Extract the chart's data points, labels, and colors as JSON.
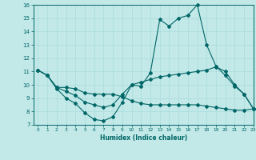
{
  "title": "",
  "xlabel": "Humidex (Indice chaleur)",
  "ylabel": "",
  "xlim": [
    -0.5,
    23
  ],
  "ylim": [
    7,
    16
  ],
  "yticks": [
    7,
    8,
    9,
    10,
    11,
    12,
    13,
    14,
    15,
    16
  ],
  "xticks": [
    0,
    1,
    2,
    3,
    4,
    5,
    6,
    7,
    8,
    9,
    10,
    11,
    12,
    13,
    14,
    15,
    16,
    17,
    18,
    19,
    20,
    21,
    22,
    23
  ],
  "bg_color": "#c2e8e8",
  "line_color": "#006666",
  "line1_y": [
    11.1,
    10.7,
    9.7,
    9.0,
    8.6,
    7.9,
    7.4,
    7.3,
    7.6,
    8.7,
    10.0,
    9.9,
    10.9,
    14.9,
    14.4,
    15.0,
    15.2,
    16.0,
    13.0,
    11.4,
    10.7,
    9.9,
    9.3,
    8.2
  ],
  "line2_y": [
    11.1,
    10.7,
    9.8,
    9.8,
    9.7,
    9.4,
    9.3,
    9.3,
    9.3,
    9.1,
    8.8,
    8.6,
    8.5,
    8.5,
    8.5,
    8.5,
    8.5,
    8.5,
    8.4,
    8.3,
    8.2,
    8.1,
    8.1,
    8.2
  ],
  "line3_y": [
    11.1,
    10.7,
    9.8,
    9.5,
    9.2,
    8.7,
    8.5,
    8.3,
    8.5,
    9.3,
    10.0,
    10.2,
    10.4,
    10.6,
    10.7,
    10.8,
    10.9,
    11.0,
    11.1,
    11.35,
    11.0,
    10.0,
    9.3,
    8.2
  ],
  "grid_color": "#aadcdc"
}
